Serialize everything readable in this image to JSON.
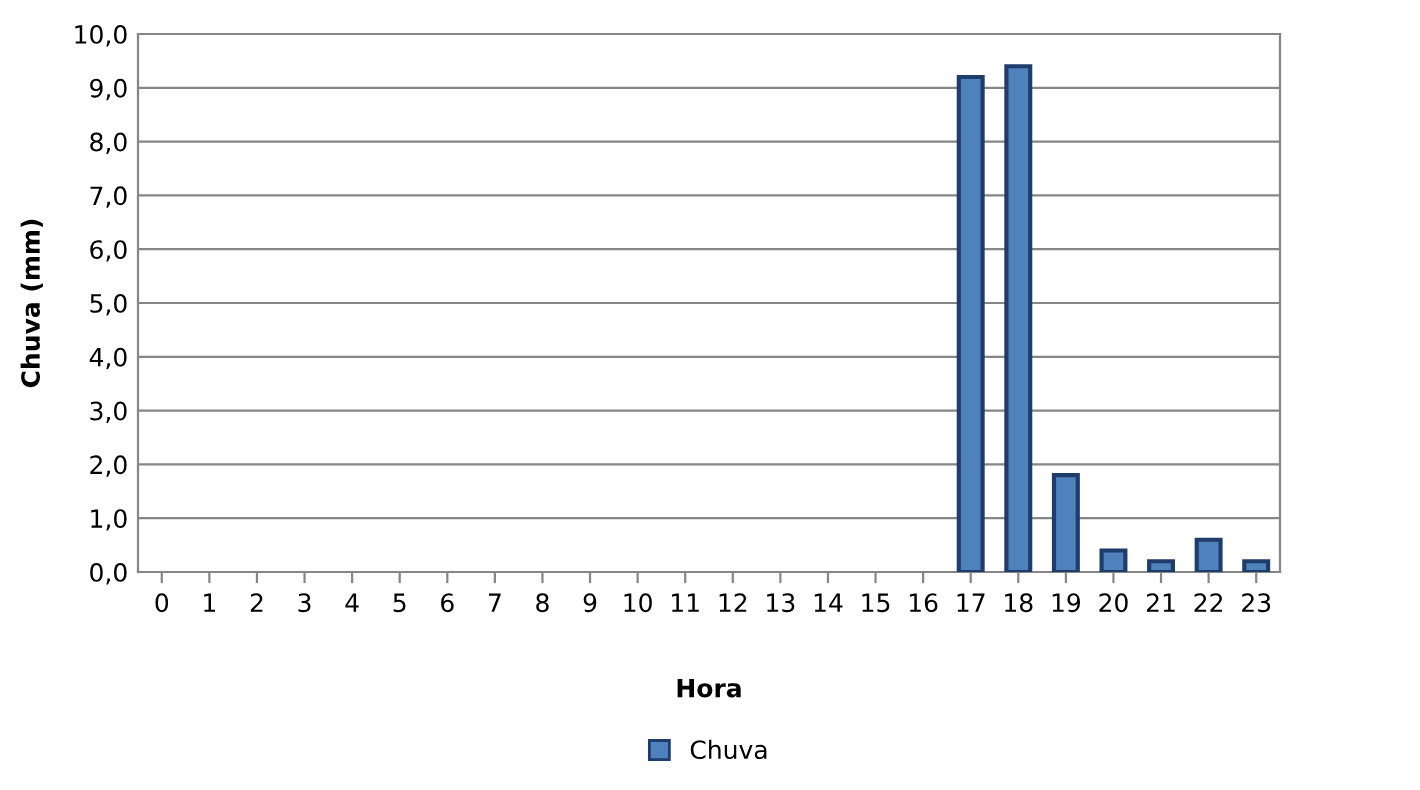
{
  "chart_data": {
    "type": "bar",
    "xlabel": "Hora",
    "ylabel": "Chuva (mm)",
    "categories": [
      "0",
      "1",
      "2",
      "3",
      "4",
      "5",
      "6",
      "7",
      "8",
      "9",
      "10",
      "11",
      "12",
      "13",
      "14",
      "15",
      "16",
      "17",
      "18",
      "19",
      "20",
      "21",
      "22",
      "23"
    ],
    "series": [
      {
        "name": "Chuva",
        "color": "#4f81bd",
        "values": [
          0,
          0,
          0,
          0,
          0,
          0,
          0,
          0,
          0,
          0,
          0,
          0,
          0,
          0,
          0,
          0,
          0,
          9.2,
          9.4,
          1.8,
          0.4,
          0.2,
          0.6,
          0.2
        ]
      }
    ],
    "ylim": [
      0,
      10
    ],
    "yticks": [
      {
        "value": 0,
        "label": "0,0"
      },
      {
        "value": 1,
        "label": "1,0"
      },
      {
        "value": 2,
        "label": "2,0"
      },
      {
        "value": 3,
        "label": "3,0"
      },
      {
        "value": 4,
        "label": "4,0"
      },
      {
        "value": 5,
        "label": "5,0"
      },
      {
        "value": 6,
        "label": "6,0"
      },
      {
        "value": 7,
        "label": "7,0"
      },
      {
        "value": 8,
        "label": "8,0"
      },
      {
        "value": 9,
        "label": "9,0"
      },
      {
        "value": 10,
        "label": "10,0"
      }
    ],
    "grid": "y",
    "legend": "bottom"
  }
}
